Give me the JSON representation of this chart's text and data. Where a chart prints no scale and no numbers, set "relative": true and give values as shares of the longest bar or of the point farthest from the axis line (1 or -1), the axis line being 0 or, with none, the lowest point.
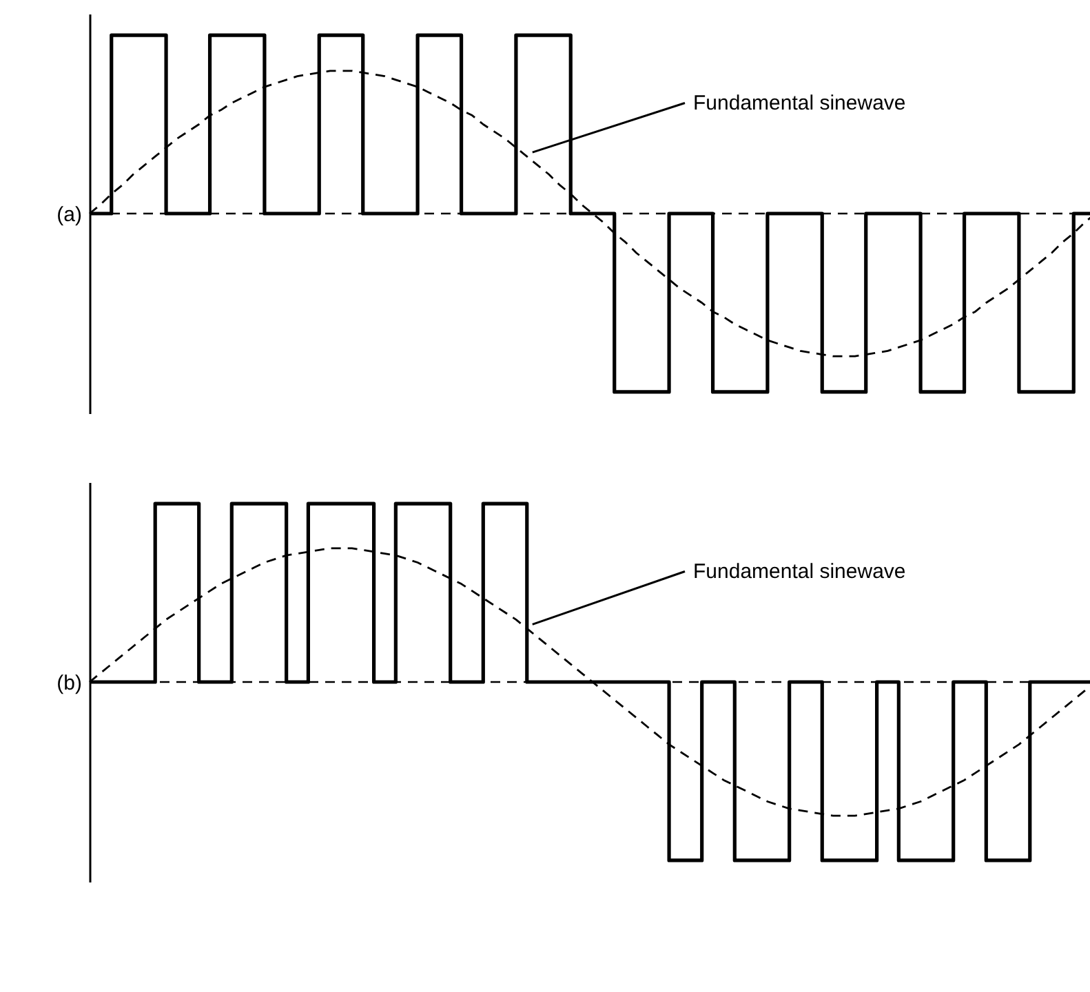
{
  "chart_data": [
    {
      "type": "step",
      "relative": true,
      "tick_labels": false,
      "ylabel": "(a)",
      "categories": [
        null,
        null,
        null,
        null,
        null,
        null,
        null,
        null,
        null,
        null,
        null,
        null,
        null,
        null,
        null,
        null,
        null,
        null,
        null,
        null,
        null,
        null,
        null,
        null,
        null,
        null,
        null,
        null,
        null,
        null,
        null,
        null,
        null,
        null,
        null,
        null,
        null,
        null,
        null,
        null,
        null,
        null,
        null,
        null,
        null,
        null,
        null,
        null,
        null,
        null,
        null,
        null,
        null,
        null,
        null,
        null,
        null,
        null,
        null,
        null,
        null,
        null,
        null,
        null,
        null,
        null,
        null,
        null,
        null,
        null,
        null,
        null,
        null,
        null,
        null,
        null,
        null,
        null,
        null,
        null,
        null,
        null,
        null,
        null,
        null,
        null,
        null,
        null,
        null,
        null,
        null,
        null,
        null
      ],
      "series": [
        {
          "type": "step",
          "color": "#000000",
          "line_style": "solid",
          "values": [
            0,
            0,
            1,
            1,
            1,
            1,
            1,
            0,
            0,
            0,
            0,
            1,
            1,
            1,
            1,
            1,
            0,
            0,
            0,
            0,
            0,
            1,
            1,
            1,
            1,
            0,
            0,
            0,
            0,
            0,
            1,
            1,
            1,
            1,
            0,
            0,
            0,
            0,
            0,
            1,
            1,
            1,
            1,
            1,
            0,
            0,
            0,
            0,
            -1,
            -1,
            -1,
            -1,
            -1,
            0,
            0,
            0,
            0,
            -1,
            -1,
            -1,
            -1,
            -1,
            0,
            0,
            0,
            0,
            0,
            -1,
            -1,
            -1,
            -1,
            0,
            0,
            0,
            0,
            0,
            -1,
            -1,
            -1,
            -1,
            0,
            0,
            0,
            0,
            0,
            -1,
            -1,
            -1,
            -1,
            -1,
            0,
            0,
            0
          ]
        },
        {
          "type": "line",
          "color": "#000000",
          "line_style": "dashed",
          "values": [
            0,
            0.05,
            0.11,
            0.16,
            0.22,
            0.27,
            0.32,
            0.37,
            0.42,
            0.46,
            0.5,
            0.55,
            0.58,
            0.62,
            0.65,
            0.68,
            0.71,
            0.73,
            0.75,
            0.77,
            0.78,
            0.79,
            0.8,
            0.8,
            0.8,
            0.79,
            0.78,
            0.77,
            0.75,
            0.73,
            0.71,
            0.68,
            0.65,
            0.62,
            0.58,
            0.55,
            0.5,
            0.46,
            0.42,
            0.37,
            0.32,
            0.27,
            0.22,
            0.16,
            0.11,
            0.05,
            0,
            -0.05,
            -0.11,
            -0.16,
            -0.22,
            -0.27,
            -0.32,
            -0.37,
            -0.42,
            -0.46,
            -0.5,
            -0.55,
            -0.58,
            -0.62,
            -0.65,
            -0.68,
            -0.71,
            -0.73,
            -0.75,
            -0.77,
            -0.78,
            -0.79,
            -0.8,
            -0.8,
            -0.8,
            -0.79,
            -0.78,
            -0.77,
            -0.75,
            -0.73,
            -0.71,
            -0.68,
            -0.65,
            -0.62,
            -0.58,
            -0.55,
            -0.5,
            -0.46,
            -0.42,
            -0.37,
            -0.32,
            -0.27,
            -0.22,
            -0.16,
            -0.11,
            -0.05,
            0
          ]
        }
      ],
      "ref_lines": [
        {
          "axis": "y",
          "value": 0,
          "line_style": "dashed"
        }
      ],
      "annotations": [
        "Fundamental sinewave"
      ]
    },
    {
      "type": "step",
      "relative": true,
      "tick_labels": false,
      "ylabel": "(b)",
      "categories": [
        null,
        null,
        null,
        null,
        null,
        null,
        null,
        null,
        null,
        null,
        null,
        null,
        null,
        null,
        null,
        null,
        null,
        null,
        null,
        null,
        null,
        null,
        null,
        null,
        null,
        null,
        null,
        null,
        null,
        null,
        null,
        null,
        null,
        null,
        null,
        null,
        null,
        null,
        null,
        null,
        null,
        null,
        null,
        null,
        null,
        null,
        null,
        null,
        null,
        null,
        null,
        null,
        null,
        null,
        null,
        null,
        null,
        null,
        null,
        null,
        null,
        null,
        null,
        null,
        null,
        null,
        null,
        null,
        null,
        null,
        null,
        null,
        null,
        null,
        null,
        null,
        null,
        null,
        null,
        null,
        null,
        null,
        null,
        null,
        null,
        null,
        null,
        null,
        null,
        null,
        null,
        null,
        null
      ],
      "series": [
        {
          "type": "step",
          "color": "#000000",
          "line_style": "solid",
          "values": [
            0,
            0,
            0,
            0,
            0,
            0,
            1,
            1,
            1,
            1,
            0,
            0,
            0,
            1,
            1,
            1,
            1,
            1,
            0,
            0,
            1,
            1,
            1,
            1,
            1,
            1,
            0,
            0,
            1,
            1,
            1,
            1,
            1,
            0,
            0,
            0,
            1,
            1,
            1,
            1,
            0,
            0,
            0,
            0,
            0,
            0,
            0,
            0,
            0,
            0,
            0,
            0,
            0,
            -1,
            -1,
            -1,
            0,
            0,
            0,
            -1,
            -1,
            -1,
            -1,
            -1,
            0,
            0,
            0,
            -1,
            -1,
            -1,
            -1,
            -1,
            0,
            0,
            -1,
            -1,
            -1,
            -1,
            -1,
            0,
            0,
            0,
            -1,
            -1,
            -1,
            -1,
            0,
            0,
            0,
            0,
            0,
            0,
            0
          ]
        },
        {
          "type": "line",
          "color": "#000000",
          "line_style": "dashed",
          "values": [
            0,
            0.05,
            0.1,
            0.15,
            0.2,
            0.25,
            0.3,
            0.35,
            0.39,
            0.43,
            0.47,
            0.51,
            0.55,
            0.58,
            0.61,
            0.64,
            0.67,
            0.69,
            0.71,
            0.72,
            0.73,
            0.74,
            0.75,
            0.75,
            0.75,
            0.74,
            0.73,
            0.72,
            0.71,
            0.69,
            0.67,
            0.64,
            0.61,
            0.58,
            0.55,
            0.51,
            0.47,
            0.43,
            0.39,
            0.35,
            0.3,
            0.25,
            0.2,
            0.15,
            0.1,
            0.05,
            0,
            -0.05,
            -0.1,
            -0.15,
            -0.2,
            -0.25,
            -0.3,
            -0.35,
            -0.39,
            -0.43,
            -0.47,
            -0.51,
            -0.55,
            -0.58,
            -0.61,
            -0.64,
            -0.67,
            -0.69,
            -0.71,
            -0.72,
            -0.73,
            -0.74,
            -0.75,
            -0.75,
            -0.75,
            -0.74,
            -0.73,
            -0.72,
            -0.71,
            -0.69,
            -0.67,
            -0.64,
            -0.61,
            -0.58,
            -0.55,
            -0.51,
            -0.47,
            -0.43,
            -0.39,
            -0.35,
            -0.3,
            -0.25,
            -0.2,
            -0.15,
            -0.1,
            -0.05,
            0
          ]
        }
      ],
      "ref_lines": [
        {
          "axis": "y",
          "value": 0,
          "line_style": "dashed"
        }
      ],
      "annotations": [
        "Fundamental sinewave"
      ]
    }
  ]
}
